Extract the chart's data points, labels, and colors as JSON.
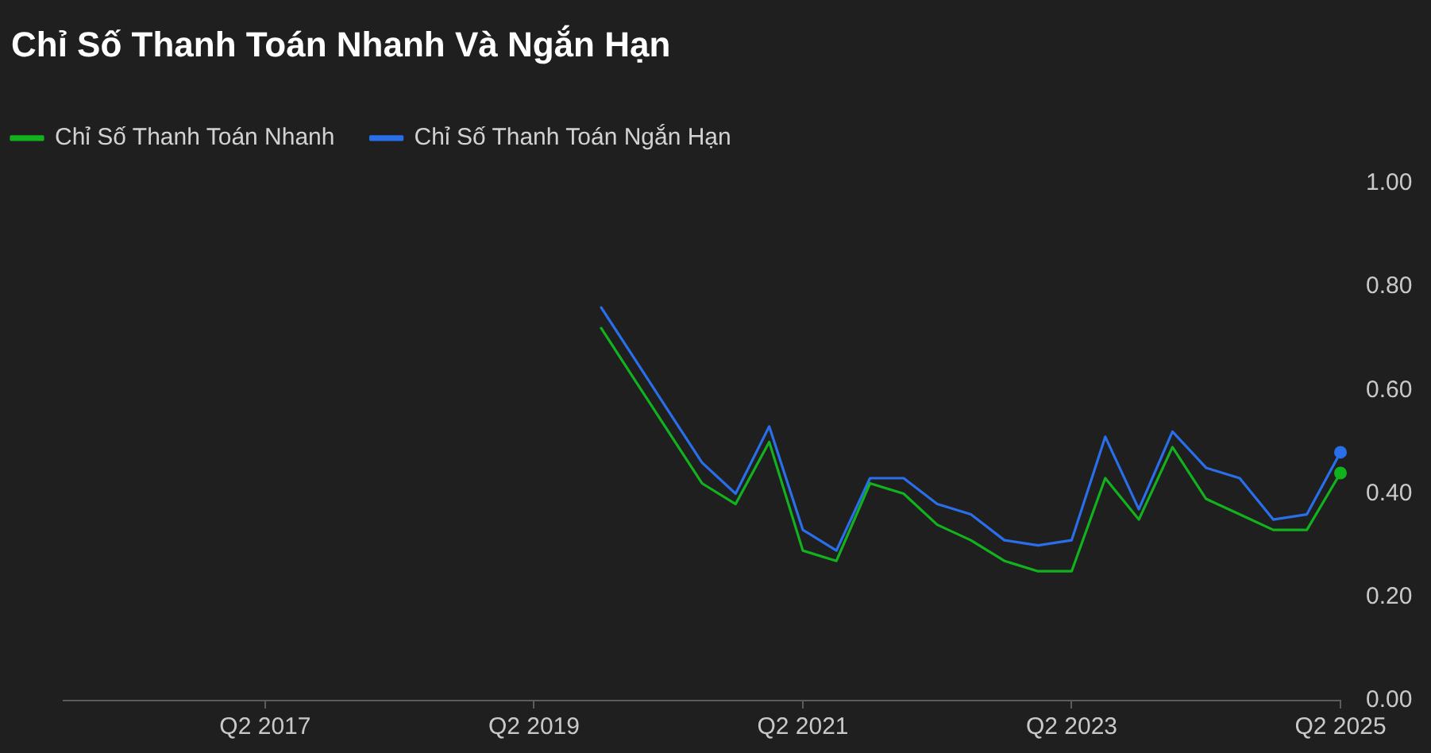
{
  "chart_data": {
    "type": "line",
    "title": "Chỉ Số Thanh Toán Nhanh Và Ngắn Hạn",
    "categories": [
      null,
      null,
      null,
      null,
      null,
      null,
      "Q2 2017",
      null,
      null,
      null,
      null,
      null,
      null,
      null,
      "Q2 2019",
      null,
      null,
      null,
      null,
      null,
      null,
      null,
      "Q2 2021",
      null,
      null,
      null,
      null,
      null,
      null,
      null,
      "Q2 2023",
      null,
      null,
      null,
      null,
      null,
      null,
      null,
      "Q2 2025"
    ],
    "series": [
      {
        "name": "Chỉ Số Thanh Toán Nhanh",
        "color": "#12b21e",
        "values": [
          null,
          null,
          null,
          null,
          null,
          null,
          null,
          null,
          null,
          null,
          null,
          null,
          null,
          null,
          null,
          null,
          0.72,
          0.62,
          0.52,
          0.42,
          0.38,
          0.5,
          0.29,
          0.27,
          0.42,
          0.4,
          0.34,
          0.31,
          0.27,
          0.25,
          0.25,
          0.43,
          0.35,
          0.49,
          0.39,
          0.36,
          0.33,
          0.33,
          0.44
        ]
      },
      {
        "name": "Chỉ Số Thanh Toán Ngắn Hạn",
        "color": "#2a6fea",
        "values": [
          null,
          null,
          null,
          null,
          null,
          null,
          null,
          null,
          null,
          null,
          null,
          null,
          null,
          null,
          null,
          null,
          0.76,
          0.66,
          0.56,
          0.46,
          0.4,
          0.53,
          0.33,
          0.29,
          0.43,
          0.43,
          0.38,
          0.36,
          0.31,
          0.3,
          0.31,
          0.51,
          0.37,
          0.52,
          0.45,
          0.43,
          0.35,
          0.36,
          0.48
        ]
      },
      {
        "type": "scatter",
        "color": "#12b21e",
        "marker": "circle",
        "x": [
          "Q2 2025"
        ],
        "values": [
          0.44
        ]
      },
      {
        "type": "scatter",
        "color": "#2a6fea",
        "marker": "circle",
        "x": [
          "Q2 2025"
        ],
        "values": [
          0.48
        ]
      }
    ],
    "ylim": [
      0,
      1
    ],
    "yticks": [
      {
        "value": 0,
        "label": "0.00"
      },
      {
        "value": 0.2,
        "label": "0.20"
      },
      {
        "value": 0.4,
        "label": "0.40"
      },
      {
        "value": 0.6,
        "label": "0.60"
      },
      {
        "value": 0.8,
        "label": "0.80"
      },
      {
        "value": 1,
        "label": "1.00"
      }
    ],
    "grid": false,
    "legend": "top left",
    "marker": "none",
    "line_style": "solid"
  }
}
